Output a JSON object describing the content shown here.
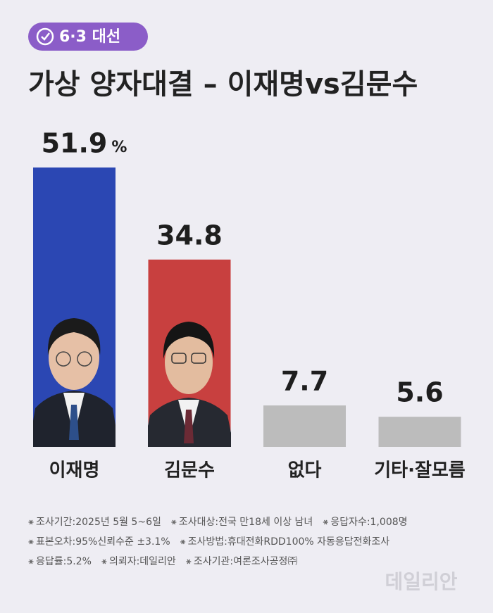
{
  "badge": "6·3 대선",
  "chart_data": {
    "type": "bar",
    "title": "가상 양자대결 – 이재명vs김문수",
    "categories": [
      "이재명",
      "김문수",
      "없다",
      "기타·잘모름"
    ],
    "values": [
      51.9,
      34.8,
      7.7,
      5.6
    ],
    "colors": [
      "#2b47b3",
      "#c8403f",
      "#bcbcbc",
      "#bcbcbc"
    ],
    "unit": "%"
  },
  "notes": [
    [
      "조사기간:2025년 5월 5~6일",
      "조사대상:전국 만18세 이상 남녀",
      "응답자수:1,008명"
    ],
    [
      "표본오차:95%신뢰수준 ±3.1%",
      "조사방법:휴대전화RDD100% 자동응답전화조사"
    ],
    [
      "응답률:5.2%",
      "의뢰자:데일리안",
      "조사기관:여론조사공정㈜"
    ]
  ],
  "watermark": "데일리안"
}
